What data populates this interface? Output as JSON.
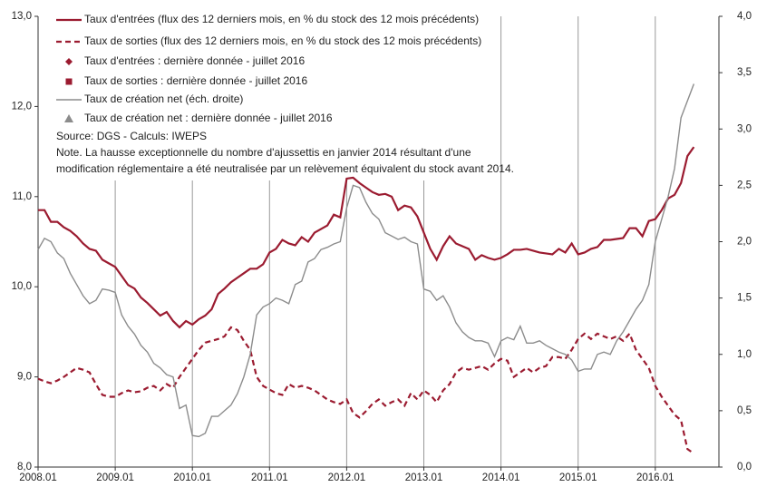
{
  "chart_data": {
    "type": "line",
    "categories": [
      "2008.01",
      null,
      null,
      null,
      null,
      null,
      null,
      null,
      null,
      null,
      null,
      null,
      "2009.01",
      null,
      null,
      null,
      null,
      null,
      null,
      null,
      null,
      null,
      null,
      null,
      "2010.01",
      null,
      null,
      null,
      null,
      null,
      null,
      null,
      null,
      null,
      null,
      null,
      "2011.01",
      null,
      null,
      null,
      null,
      null,
      null,
      null,
      null,
      null,
      null,
      null,
      "2012.01",
      null,
      null,
      null,
      null,
      null,
      null,
      null,
      null,
      null,
      null,
      null,
      "2013.01",
      null,
      null,
      null,
      null,
      null,
      null,
      null,
      null,
      null,
      null,
      null,
      "2014.01",
      null,
      null,
      null,
      null,
      null,
      null,
      null,
      null,
      null,
      null,
      null,
      "2015.01",
      null,
      null,
      null,
      null,
      null,
      null,
      null,
      null,
      null,
      null,
      null,
      "2016.01",
      null,
      null,
      null,
      null,
      null,
      null
    ],
    "series": [
      {
        "name": "Taux d'entrées (flux des 12 derniers mois, en % du stock des 12 mois précédents)",
        "color": "#9b1b30",
        "dash": false,
        "axis": "y",
        "values": [
          10.85,
          10.85,
          10.72,
          10.72,
          10.66,
          10.62,
          10.56,
          10.48,
          10.42,
          10.4,
          10.3,
          10.26,
          10.22,
          10.12,
          10.02,
          9.98,
          9.88,
          9.82,
          9.75,
          9.68,
          9.72,
          9.62,
          9.55,
          9.62,
          9.58,
          9.64,
          9.68,
          9.75,
          9.92,
          9.98,
          10.05,
          10.1,
          10.15,
          10.2,
          10.2,
          10.25,
          10.38,
          10.42,
          10.52,
          10.48,
          10.46,
          10.55,
          10.5,
          10.6,
          10.64,
          10.68,
          10.8,
          10.77,
          11.2,
          11.21,
          11.15,
          11.1,
          11.05,
          11.02,
          11.03,
          11.0,
          10.85,
          10.9,
          10.88,
          10.78,
          10.6,
          10.42,
          10.3,
          10.45,
          10.56,
          10.48,
          10.45,
          10.42,
          10.3,
          10.35,
          10.32,
          10.3,
          10.32,
          10.36,
          10.41,
          10.41,
          10.42,
          10.4,
          10.38,
          10.37,
          10.36,
          10.42,
          10.38,
          10.48,
          10.36,
          10.38,
          10.42,
          10.44,
          10.52,
          10.52,
          10.53,
          10.54,
          10.65,
          10.65,
          10.56,
          10.73,
          10.75,
          10.85,
          10.98,
          11.02,
          11.15,
          11.45,
          11.55
        ]
      },
      {
        "name": "Taux de sorties (flux des 12 derniers mois, en % du stock des 12 mois précédents)",
        "color": "#9b1b30",
        "dash": true,
        "axis": "y",
        "values": [
          8.98,
          8.95,
          8.93,
          8.96,
          9.0,
          9.05,
          9.1,
          9.08,
          9.05,
          8.92,
          8.8,
          8.78,
          8.78,
          8.82,
          8.85,
          8.83,
          8.84,
          8.88,
          8.9,
          8.85,
          8.92,
          8.88,
          9.0,
          9.1,
          9.2,
          9.3,
          9.38,
          9.4,
          9.42,
          9.45,
          9.55,
          9.52,
          9.4,
          9.3,
          9.0,
          8.9,
          8.86,
          8.82,
          8.8,
          8.92,
          8.88,
          8.9,
          8.88,
          8.85,
          8.8,
          8.75,
          8.72,
          8.7,
          8.75,
          8.6,
          8.55,
          8.62,
          8.7,
          8.75,
          8.68,
          8.72,
          8.75,
          8.68,
          8.82,
          8.75,
          8.85,
          8.8,
          8.72,
          8.85,
          8.92,
          9.05,
          9.1,
          9.08,
          9.1,
          9.12,
          9.08,
          9.15,
          9.2,
          9.18,
          9.0,
          9.05,
          9.1,
          9.05,
          9.1,
          9.12,
          9.22,
          9.22,
          9.2,
          9.3,
          9.42,
          9.48,
          9.42,
          9.48,
          9.45,
          9.42,
          9.45,
          9.4,
          9.48,
          9.3,
          9.2,
          9.1,
          8.9,
          8.78,
          8.68,
          8.58,
          8.52,
          8.2,
          8.15
        ]
      },
      {
        "name": "Taux de création net (éch. droite)",
        "color": "#8c8c8c",
        "dash": false,
        "axis": "y2",
        "values": [
          1.93,
          2.03,
          2.0,
          1.9,
          1.85,
          1.72,
          1.62,
          1.52,
          1.45,
          1.48,
          1.58,
          1.57,
          1.55,
          1.35,
          1.25,
          1.18,
          1.08,
          1.02,
          0.92,
          0.88,
          0.82,
          0.8,
          0.52,
          0.55,
          0.28,
          0.27,
          0.3,
          0.45,
          0.45,
          0.5,
          0.55,
          0.65,
          0.8,
          1.0,
          1.35,
          1.42,
          1.45,
          1.5,
          1.48,
          1.45,
          1.62,
          1.65,
          1.82,
          1.85,
          1.93,
          1.95,
          1.98,
          2.0,
          2.3,
          2.5,
          2.48,
          2.35,
          2.25,
          2.2,
          2.08,
          2.05,
          2.02,
          2.04,
          2.0,
          1.98,
          1.58,
          1.56,
          1.48,
          1.52,
          1.42,
          1.28,
          1.2,
          1.15,
          1.12,
          1.12,
          1.1,
          0.98,
          1.12,
          1.15,
          1.13,
          1.25,
          1.1,
          1.1,
          1.12,
          1.08,
          1.05,
          1.02,
          1.0,
          0.95,
          0.85,
          0.87,
          0.87,
          1.0,
          1.02,
          1.0,
          1.12,
          1.2,
          1.3,
          1.4,
          1.48,
          1.62,
          2.0,
          2.2,
          2.4,
          2.65,
          3.1,
          3.25,
          3.4
        ]
      }
    ],
    "legend_markers": [
      {
        "name": "Taux d'entrées : dernière donnée - juillet 2016",
        "color": "#9b1b30",
        "marker": "diamond"
      },
      {
        "name": "Taux de sorties : dernière donnée - juillet 2016",
        "color": "#9b1b30",
        "marker": "square"
      },
      {
        "name": "Taux de création net : dernière donnée - juillet 2016",
        "color": "#8c8c8c",
        "marker": "triangle"
      }
    ],
    "annotations": [
      "Source: DGS - Calculs: IWEPS",
      "Note. La hausse exceptionnelle du nombre d'ajussettis en janvier 2014 résultant d'une",
      "modification réglementaire a été neutralisée par un relèvement équivalent du stock avant 2014."
    ],
    "ylim": [
      8,
      13
    ],
    "yticks": [
      {
        "value": 8,
        "label": "8,0"
      },
      {
        "value": 9,
        "label": "9,0"
      },
      {
        "value": 10,
        "label": "10,0"
      },
      {
        "value": 11,
        "label": "11,0"
      },
      {
        "value": 12,
        "label": "12,0"
      },
      {
        "value": 13,
        "label": "13,0"
      }
    ],
    "y2lim": [
      0,
      4
    ],
    "y2ticks": [
      {
        "value": 0,
        "label": "0,0"
      },
      {
        "value": 0.5,
        "label": "0,5"
      },
      {
        "value": 1,
        "label": "1,0"
      },
      {
        "value": 1.5,
        "label": "1,5"
      },
      {
        "value": 2,
        "label": "2,0"
      },
      {
        "value": 2.5,
        "label": "2,5"
      },
      {
        "value": 3,
        "label": "3,0"
      },
      {
        "value": 3.5,
        "label": "3,5"
      },
      {
        "value": 4,
        "label": "4,0"
      }
    ],
    "grid": true
  }
}
